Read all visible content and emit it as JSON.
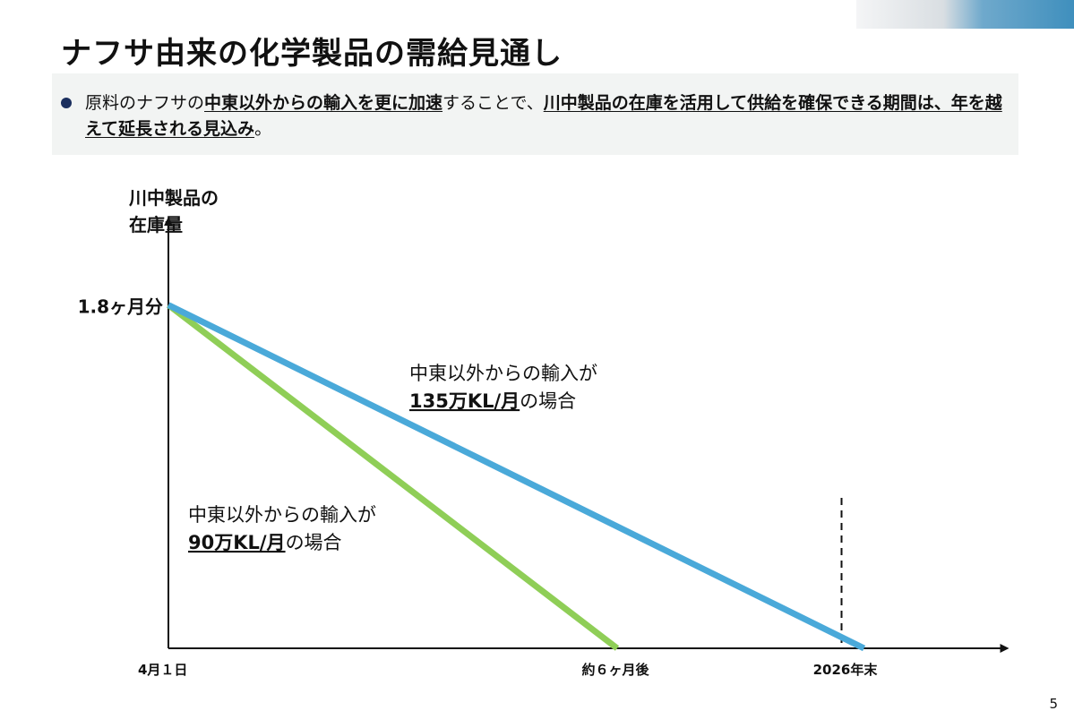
{
  "title": "ナフサ由来の化学製品の需給見通し",
  "summary": {
    "segments": [
      {
        "text": "原料のナフサの",
        "bold": false
      },
      {
        "text": "中東以外からの輸入を更に加速",
        "bold": true
      },
      {
        "text": "することで、",
        "bold": false
      },
      {
        "text": "川中製品の在庫を活用して供給を確保できる期間は、年を越えて延長される見込み",
        "bold": true
      },
      {
        "text": "。",
        "bold": false
      }
    ]
  },
  "page_number": "5",
  "colors": {
    "blue_series": "#4aa9d9",
    "green_series": "#8fce57",
    "bullet": "#1b2f5e"
  },
  "chart_data": {
    "type": "line",
    "ylabel": [
      "川中製品の",
      "在庫量"
    ],
    "y_start_label": "1.8ヶ月分",
    "x_ticks": [
      {
        "label": "4月１日",
        "x": 0
      },
      {
        "label": "約６ヶ月後",
        "x": 6
      },
      {
        "label": "2026年末",
        "x": 9
      }
    ],
    "y_start": 1.8,
    "xlim": [
      0,
      11
    ],
    "ylim": [
      0,
      2.3
    ],
    "marker": {
      "x": 9,
      "style": "dashed"
    },
    "series": [
      {
        "name_line1": "中東以外からの輸入が",
        "name_emph": "90万KL/月",
        "name_suffix": "の場合",
        "color": "#8fce57",
        "points": [
          [
            0,
            1.8
          ],
          [
            6,
            0
          ]
        ]
      },
      {
        "name_line1": "中東以外からの輸入が",
        "name_emph": "135万KL/月",
        "name_suffix": "の場合",
        "color": "#4aa9d9",
        "points": [
          [
            0,
            1.8
          ],
          [
            9.3,
            0
          ]
        ]
      }
    ]
  }
}
